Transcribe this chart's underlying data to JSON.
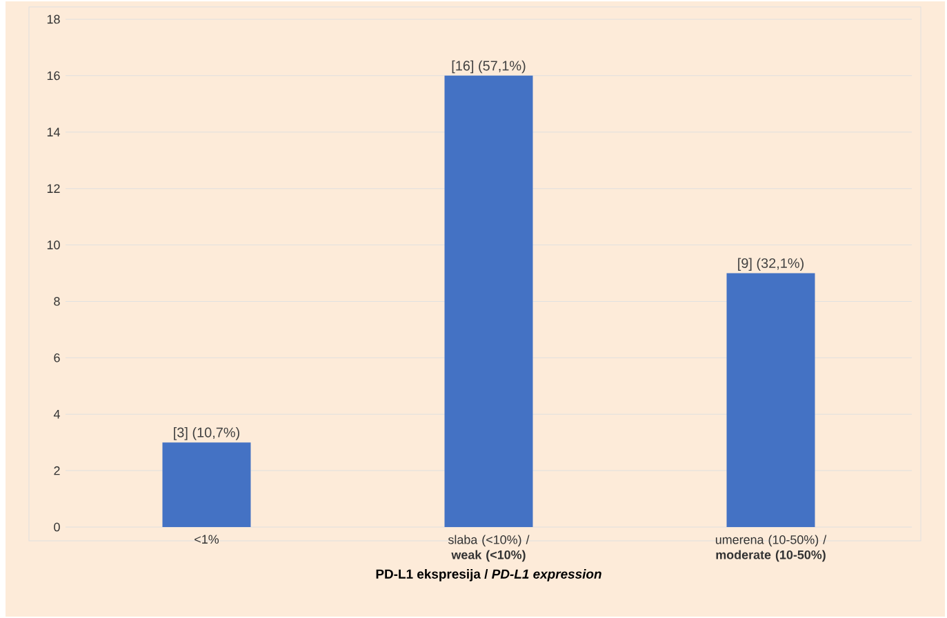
{
  "chart_data": {
    "type": "bar",
    "categories": [
      "<1%",
      "slaba (<10%) / **weak (<10%)**",
      "umerena (10-50%) / **moderate (10-50%)**"
    ],
    "values": [
      3,
      16,
      9
    ],
    "color": "#4472c4",
    "value_labels": [
      "[3] (10,7%)",
      "[16] (57,1%)",
      "[9] (32,1%)"
    ],
    "xlabel": "PD-L1 ekspresija / *PD-L1 expression*",
    "ylim": [
      0,
      18
    ],
    "yticks": [
      0,
      2,
      4,
      6,
      8,
      10,
      12,
      14,
      16,
      18
    ],
    "grid": "y"
  }
}
